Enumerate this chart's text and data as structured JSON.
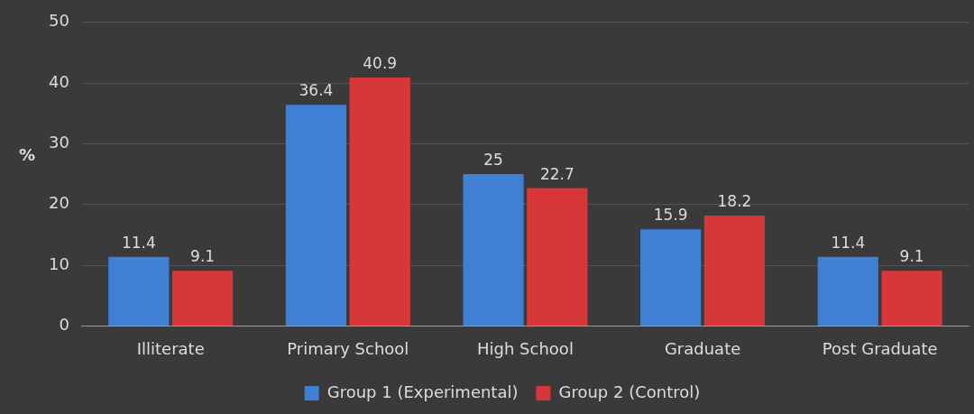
{
  "chart_data": {
    "type": "bar",
    "ylabel": "%",
    "categories": [
      "Illiterate",
      "Primary School",
      "High School",
      "Graduate",
      "Post Graduate"
    ],
    "series": [
      {
        "name": "Group 1 (Experimental)",
        "color": "#3f7fd4",
        "values": [
          11.4,
          36.4,
          25,
          15.9,
          11.4
        ]
      },
      {
        "name": "Group 2 (Control)",
        "color": "#d8373a",
        "values": [
          9.1,
          40.9,
          22.7,
          18.2,
          9.1
        ]
      }
    ],
    "ylim": [
      0,
      50
    ],
    "yticks": [
      0,
      10,
      20,
      30,
      40,
      50
    ],
    "grid": "y",
    "legend": "bottom",
    "data_labels": true
  }
}
